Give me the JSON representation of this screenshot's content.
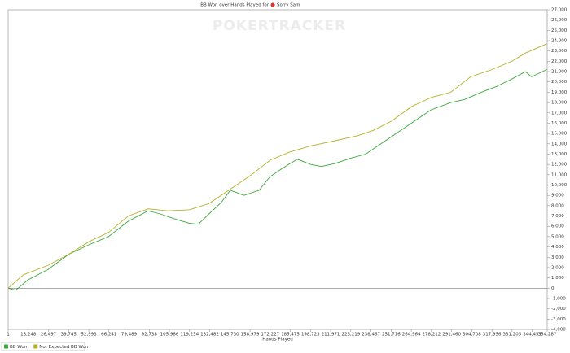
{
  "chart_data": {
    "type": "line",
    "title": "BB Won over Hands Played for",
    "player": "Sorry Sam",
    "watermark": "POKERTRACKER",
    "x_label": "Hands Played",
    "xlim": [
      1,
      354287
    ],
    "ylim": [
      -4000,
      27000
    ],
    "xticks": [
      1,
      {
        "value": 13248,
        "label": "13,248"
      },
      {
        "value": 26497,
        "label": "26,497"
      },
      {
        "value": 39745,
        "label": "39,745"
      },
      {
        "value": 52993,
        "label": "52,993"
      },
      {
        "value": 66241,
        "label": "66,241"
      },
      {
        "value": 79489,
        "label": "79,489"
      },
      {
        "value": 92738,
        "label": "92,738"
      },
      {
        "value": 105986,
        "label": "105,986"
      },
      {
        "value": 119234,
        "label": "119,234"
      },
      {
        "value": 132482,
        "label": "132,482"
      },
      {
        "value": 145730,
        "label": "145,730"
      },
      {
        "value": 158979,
        "label": "158,979"
      },
      {
        "value": 172227,
        "label": "172,227"
      },
      {
        "value": 185475,
        "label": "185,475"
      },
      {
        "value": 198723,
        "label": "198,723"
      },
      {
        "value": 211971,
        "label": "211,971"
      },
      {
        "value": 225219,
        "label": "225,219"
      },
      {
        "value": 238467,
        "label": "238,467"
      },
      {
        "value": 251716,
        "label": "251,716"
      },
      {
        "value": 264964,
        "label": "264,964"
      },
      {
        "value": 278212,
        "label": "278,212"
      },
      {
        "value": 291460,
        "label": "291,460"
      },
      {
        "value": 304708,
        "label": "304,708"
      },
      {
        "value": 317956,
        "label": "317,956"
      },
      {
        "value": 331205,
        "label": "331,205"
      },
      {
        "value": 344453,
        "label": "344,453"
      },
      {
        "value": 354287,
        "label": "354,287"
      }
    ],
    "yticks": [
      {
        "value": -4000,
        "label": "-4,000"
      },
      {
        "value": -3000,
        "label": "-3,000"
      },
      {
        "value": -2000,
        "label": "-2,000"
      },
      {
        "value": -1000,
        "label": "-1,000"
      },
      0,
      {
        "value": 1000,
        "label": "1,000"
      },
      {
        "value": 2000,
        "label": "2,000"
      },
      {
        "value": 3000,
        "label": "3,000"
      },
      {
        "value": 4000,
        "label": "4,000"
      },
      {
        "value": 5000,
        "label": "5,000"
      },
      {
        "value": 6000,
        "label": "6,000"
      },
      {
        "value": 7000,
        "label": "7,000"
      },
      {
        "value": 8000,
        "label": "8,000"
      },
      {
        "value": 9000,
        "label": "9,000"
      },
      {
        "value": 10000,
        "label": "10,000"
      },
      {
        "value": 11000,
        "label": "11,000"
      },
      {
        "value": 12000,
        "label": "12,000"
      },
      {
        "value": 13000,
        "label": "13,000"
      },
      {
        "value": 14000,
        "label": "14,000"
      },
      {
        "value": 15000,
        "label": "15,000"
      },
      {
        "value": 16000,
        "label": "16,000"
      },
      {
        "value": 17000,
        "label": "17,000"
      },
      {
        "value": 18000,
        "label": "18,000"
      },
      {
        "value": 19000,
        "label": "19,000"
      },
      {
        "value": 20000,
        "label": "20,000"
      },
      {
        "value": 21000,
        "label": "21,000"
      },
      {
        "value": 22000,
        "label": "22,000"
      },
      {
        "value": 23000,
        "label": "23,000"
      },
      {
        "value": 24000,
        "label": "24,000"
      },
      {
        "value": 25000,
        "label": "25,000"
      },
      {
        "value": 26000,
        "label": "26,000"
      },
      {
        "value": 27000,
        "label": "27,000"
      }
    ],
    "series": [
      {
        "name": "BB Won",
        "color": "#3aa83a",
        "x": [
          1,
          5000,
          13000,
          26000,
          40000,
          53000,
          66000,
          79000,
          92000,
          100000,
          110000,
          119000,
          125000,
          132000,
          140000,
          146000,
          155000,
          165000,
          172000,
          180000,
          190000,
          199000,
          206000,
          215000,
          225000,
          235000,
          245000,
          255000,
          265000,
          278000,
          291000,
          300000,
          311000,
          320000,
          330000,
          340000,
          344000,
          354000
        ],
        "values": [
          0,
          -200,
          800,
          1800,
          3300,
          4200,
          5000,
          6500,
          7500,
          7200,
          6700,
          6300,
          6200,
          7200,
          8300,
          9500,
          9000,
          9500,
          10800,
          11600,
          12500,
          12000,
          11800,
          12100,
          12600,
          13000,
          14000,
          15000,
          16000,
          17300,
          18000,
          18300,
          19000,
          19500,
          20200,
          21000,
          20500,
          21200
        ]
      },
      {
        "name": "Not Expected BB Won",
        "color": "#b5b02a",
        "x": [
          1,
          10000,
          26000,
          40000,
          53000,
          66000,
          79000,
          92000,
          105000,
          119000,
          132000,
          146000,
          160000,
          172000,
          185000,
          199000,
          215000,
          230000,
          240000,
          252000,
          265000,
          278000,
          291000,
          304000,
          318000,
          331000,
          340000,
          354000
        ],
        "values": [
          0,
          1300,
          2200,
          3300,
          4500,
          5400,
          7000,
          7700,
          7500,
          7600,
          8200,
          9600,
          11000,
          12400,
          13200,
          13800,
          14300,
          14800,
          15300,
          16200,
          17600,
          18500,
          19000,
          20500,
          21200,
          22000,
          22800,
          23700
        ]
      }
    ]
  }
}
